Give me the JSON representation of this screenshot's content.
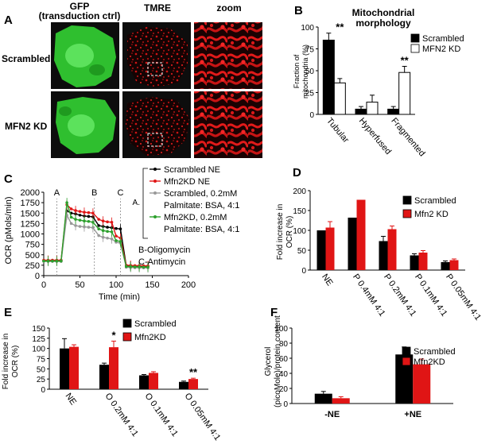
{
  "panel_letters": {
    "a": "A",
    "b": "B",
    "c": "C",
    "d": "D",
    "e": "E",
    "f": "F"
  },
  "panel_a": {
    "col_headers": [
      "GFP",
      "(transduction ctrl)",
      "TMRE",
      "zoom"
    ],
    "rows": [
      "Scrambled",
      "MFN2 KD"
    ],
    "colors": {
      "gfp": "#2fbf2f",
      "tmre": "#e01515",
      "background": "#0d0d0d"
    }
  },
  "chart_data": [
    {
      "id": "B",
      "type": "bar",
      "title": "Mitochondrial morphology",
      "title_lines": [
        "Mitochondrial",
        "morphology"
      ],
      "ylabel_lines": [
        "Fraction of",
        "mitochondria (%)"
      ],
      "categories": [
        "Tubular",
        "Hyperfused",
        "Fragmented"
      ],
      "ylim": [
        0,
        100
      ],
      "yticks": [
        0,
        25,
        50,
        75,
        100
      ],
      "series": [
        {
          "name": "Scrambled",
          "color": "#000000",
          "values": [
            85,
            6,
            6
          ],
          "errors": [
            8,
            3,
            3
          ]
        },
        {
          "name": "MFN2 KD",
          "color": "#ffffff",
          "values": [
            36,
            14,
            48
          ],
          "errors": [
            5,
            8,
            7
          ]
        }
      ],
      "significance": [
        {
          "category": "Tubular",
          "label": "**"
        },
        {
          "category": "Fragmented",
          "label": "**"
        }
      ],
      "legend": "top-right"
    },
    {
      "id": "C",
      "type": "line",
      "xlabel": "Time (min)",
      "ylabel": "OCR (pMols/min)",
      "xlim": [
        0,
        200
      ],
      "ylim": [
        0,
        2000
      ],
      "xticks": [
        0,
        50,
        100,
        150,
        200
      ],
      "yticks": [
        0,
        250,
        500,
        750,
        1000,
        1250,
        1500,
        1750,
        2000
      ],
      "injections": [
        {
          "label": "A",
          "x": 18
        },
        {
          "label": "B",
          "x": 70
        },
        {
          "label": "C",
          "x": 106
        }
      ],
      "x": [
        0,
        6,
        12,
        18,
        24,
        32,
        38,
        44,
        50,
        56,
        62,
        68,
        76,
        82,
        88,
        94,
        100,
        106,
        114,
        120,
        126,
        132,
        138,
        144
      ],
      "series": [
        {
          "name": "Scrambled NE",
          "color": "#000000",
          "values": [
            360,
            360,
            360,
            360,
            360,
            1550,
            1500,
            1480,
            1450,
            1430,
            1420,
            1410,
            1200,
            1180,
            1160,
            1150,
            1130,
            1120,
            240,
            235,
            230,
            230,
            225,
            225
          ]
        },
        {
          "name": "Mfn2KD NE",
          "color": "#e01515",
          "values": [
            370,
            370,
            370,
            370,
            370,
            1700,
            1600,
            1560,
            1540,
            1520,
            1510,
            1500,
            1350,
            1310,
            1290,
            1280,
            950,
            900,
            250,
            245,
            240,
            240,
            235,
            235
          ]
        },
        {
          "name": "Scrambled, 0.2mM Palmitate: BSA, 4:1",
          "color": "#999999",
          "values": [
            340,
            340,
            340,
            340,
            340,
            1450,
            1250,
            1200,
            1180,
            1170,
            1160,
            1150,
            960,
            920,
            900,
            880,
            800,
            780,
            200,
            195,
            190,
            190,
            185,
            185
          ]
        },
        {
          "name": "Mfn2KD, 0.2mM Palmitate: BSA, 4:1",
          "color": "#2ca02c",
          "values": [
            350,
            350,
            350,
            350,
            350,
            1750,
            1400,
            1350,
            1330,
            1310,
            1300,
            1280,
            1120,
            1080,
            1060,
            1050,
            840,
            820,
            220,
            215,
            210,
            210,
            205,
            205
          ]
        }
      ],
      "legend_lines": [
        "Scrambled NE",
        "Mfn2KD NE",
        "Scrambled, 0.2mM",
        "Palmitate: BSA, 4:1",
        "Mfn2KD, 0.2mM",
        "Palmitate: BSA, 4:1"
      ],
      "annotations": [
        "A.",
        "B-Oligomycin",
        "C-Antimycin"
      ],
      "legend": "right"
    },
    {
      "id": "D",
      "type": "bar",
      "ylabel_lines": [
        "Fold increase in",
        "OCR (%)"
      ],
      "categories": [
        "NE",
        "P 0.4mM 4:1",
        "P 0.2mM 4:1",
        "P 0.1mM 4:1",
        "P 0.05mM 4:1"
      ],
      "ylim": [
        0,
        200
      ],
      "yticks": [
        0,
        50,
        100,
        150,
        200
      ],
      "series": [
        {
          "name": "Scrambled",
          "color": "#000000",
          "values": [
            100,
            132,
            73,
            37,
            20
          ],
          "errors": [
            0,
            0,
            12,
            4,
            3
          ]
        },
        {
          "name": "Mfn2 KD",
          "color": "#e01515",
          "values": [
            107,
            177,
            103,
            44,
            25
          ],
          "errors": [
            15,
            0,
            8,
            5,
            3
          ]
        }
      ],
      "legend": "top-right"
    },
    {
      "id": "E",
      "type": "bar",
      "ylabel_lines": [
        "Fold increase in",
        "OCR (%)"
      ],
      "categories": [
        "NE",
        "O 0.2mM 4:1",
        "O 0.1mM 4:1",
        "O 0.05mM 4:1"
      ],
      "ylim": [
        0,
        150
      ],
      "yticks": [
        0,
        25,
        50,
        75,
        100,
        125,
        150
      ],
      "series": [
        {
          "name": "Scrambled",
          "color": "#000000",
          "values": [
            100,
            60,
            34,
            18
          ],
          "errors": [
            24,
            4,
            2,
            2
          ]
        },
        {
          "name": "Mfn2KD",
          "color": "#e01515",
          "values": [
            104,
            103,
            40,
            25
          ],
          "errors": [
            5,
            15,
            3,
            2
          ]
        }
      ],
      "significance": [
        {
          "category": "O 0.2mM 4:1",
          "label": "*"
        },
        {
          "category": "O 0.05mM 4:1",
          "label": "**"
        }
      ],
      "legend": "top-right"
    },
    {
      "id": "F",
      "type": "bar",
      "ylabel_lines": [
        "Glycerol",
        "(picoMole)/protein content"
      ],
      "categories": [
        "-NE",
        "+NE"
      ],
      "ylim": [
        0,
        100
      ],
      "yticks": [
        0,
        20,
        40,
        60,
        80,
        100
      ],
      "series": [
        {
          "name": "Scrambled",
          "color": "#000000",
          "values": [
            13,
            65
          ],
          "errors": [
            3,
            10
          ]
        },
        {
          "name": "Mfn2KD",
          "color": "#e01515",
          "values": [
            7,
            52
          ],
          "errors": [
            2,
            7
          ]
        }
      ],
      "legend": "top-right"
    }
  ]
}
